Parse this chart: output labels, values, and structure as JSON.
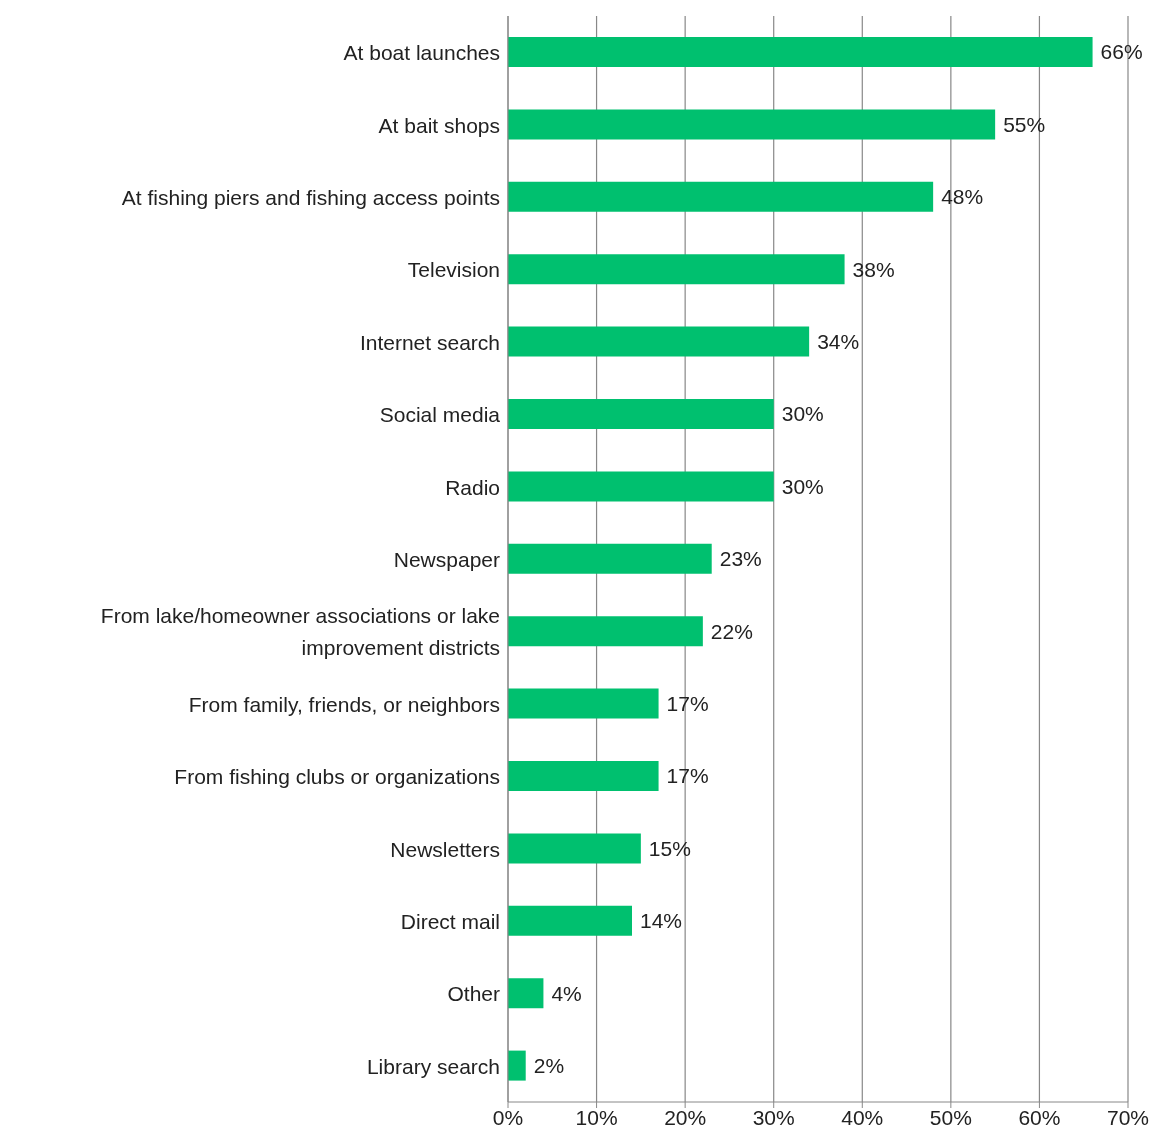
{
  "chart_data": {
    "type": "bar",
    "orientation": "horizontal",
    "categories": [
      "At boat launches",
      "At bait shops",
      "At fishing piers and fishing access points",
      "Television",
      "Internet search",
      "Social media",
      "Radio",
      "Newspaper",
      "From lake/homeowner associations or lake improvement districts",
      "From family, friends, or neighbors",
      "From fishing clubs or organizations",
      "Newsletters",
      "Direct mail",
      "Other",
      "Library search"
    ],
    "values": [
      66,
      55,
      48,
      38,
      34,
      30,
      30,
      23,
      22,
      17,
      17,
      15,
      14,
      4,
      2
    ],
    "value_labels": [
      "66%",
      "55%",
      "48%",
      "38%",
      "34%",
      "30%",
      "30%",
      "23%",
      "22%",
      "17%",
      "17%",
      "15%",
      "14%",
      "4%",
      "2%"
    ],
    "color": "#00c06f",
    "xlim": [
      0,
      70
    ],
    "xticks": [
      {
        "value": 0,
        "label": "0%"
      },
      {
        "value": 10,
        "label": "10%"
      },
      {
        "value": 20,
        "label": "20%"
      },
      {
        "value": 30,
        "label": "30%"
      },
      {
        "value": 40,
        "label": "40%"
      },
      {
        "value": 50,
        "label": "50%"
      },
      {
        "value": 60,
        "label": "60%"
      },
      {
        "value": 70,
        "label": "70%"
      }
    ],
    "grid": "x",
    "legend": false
  }
}
